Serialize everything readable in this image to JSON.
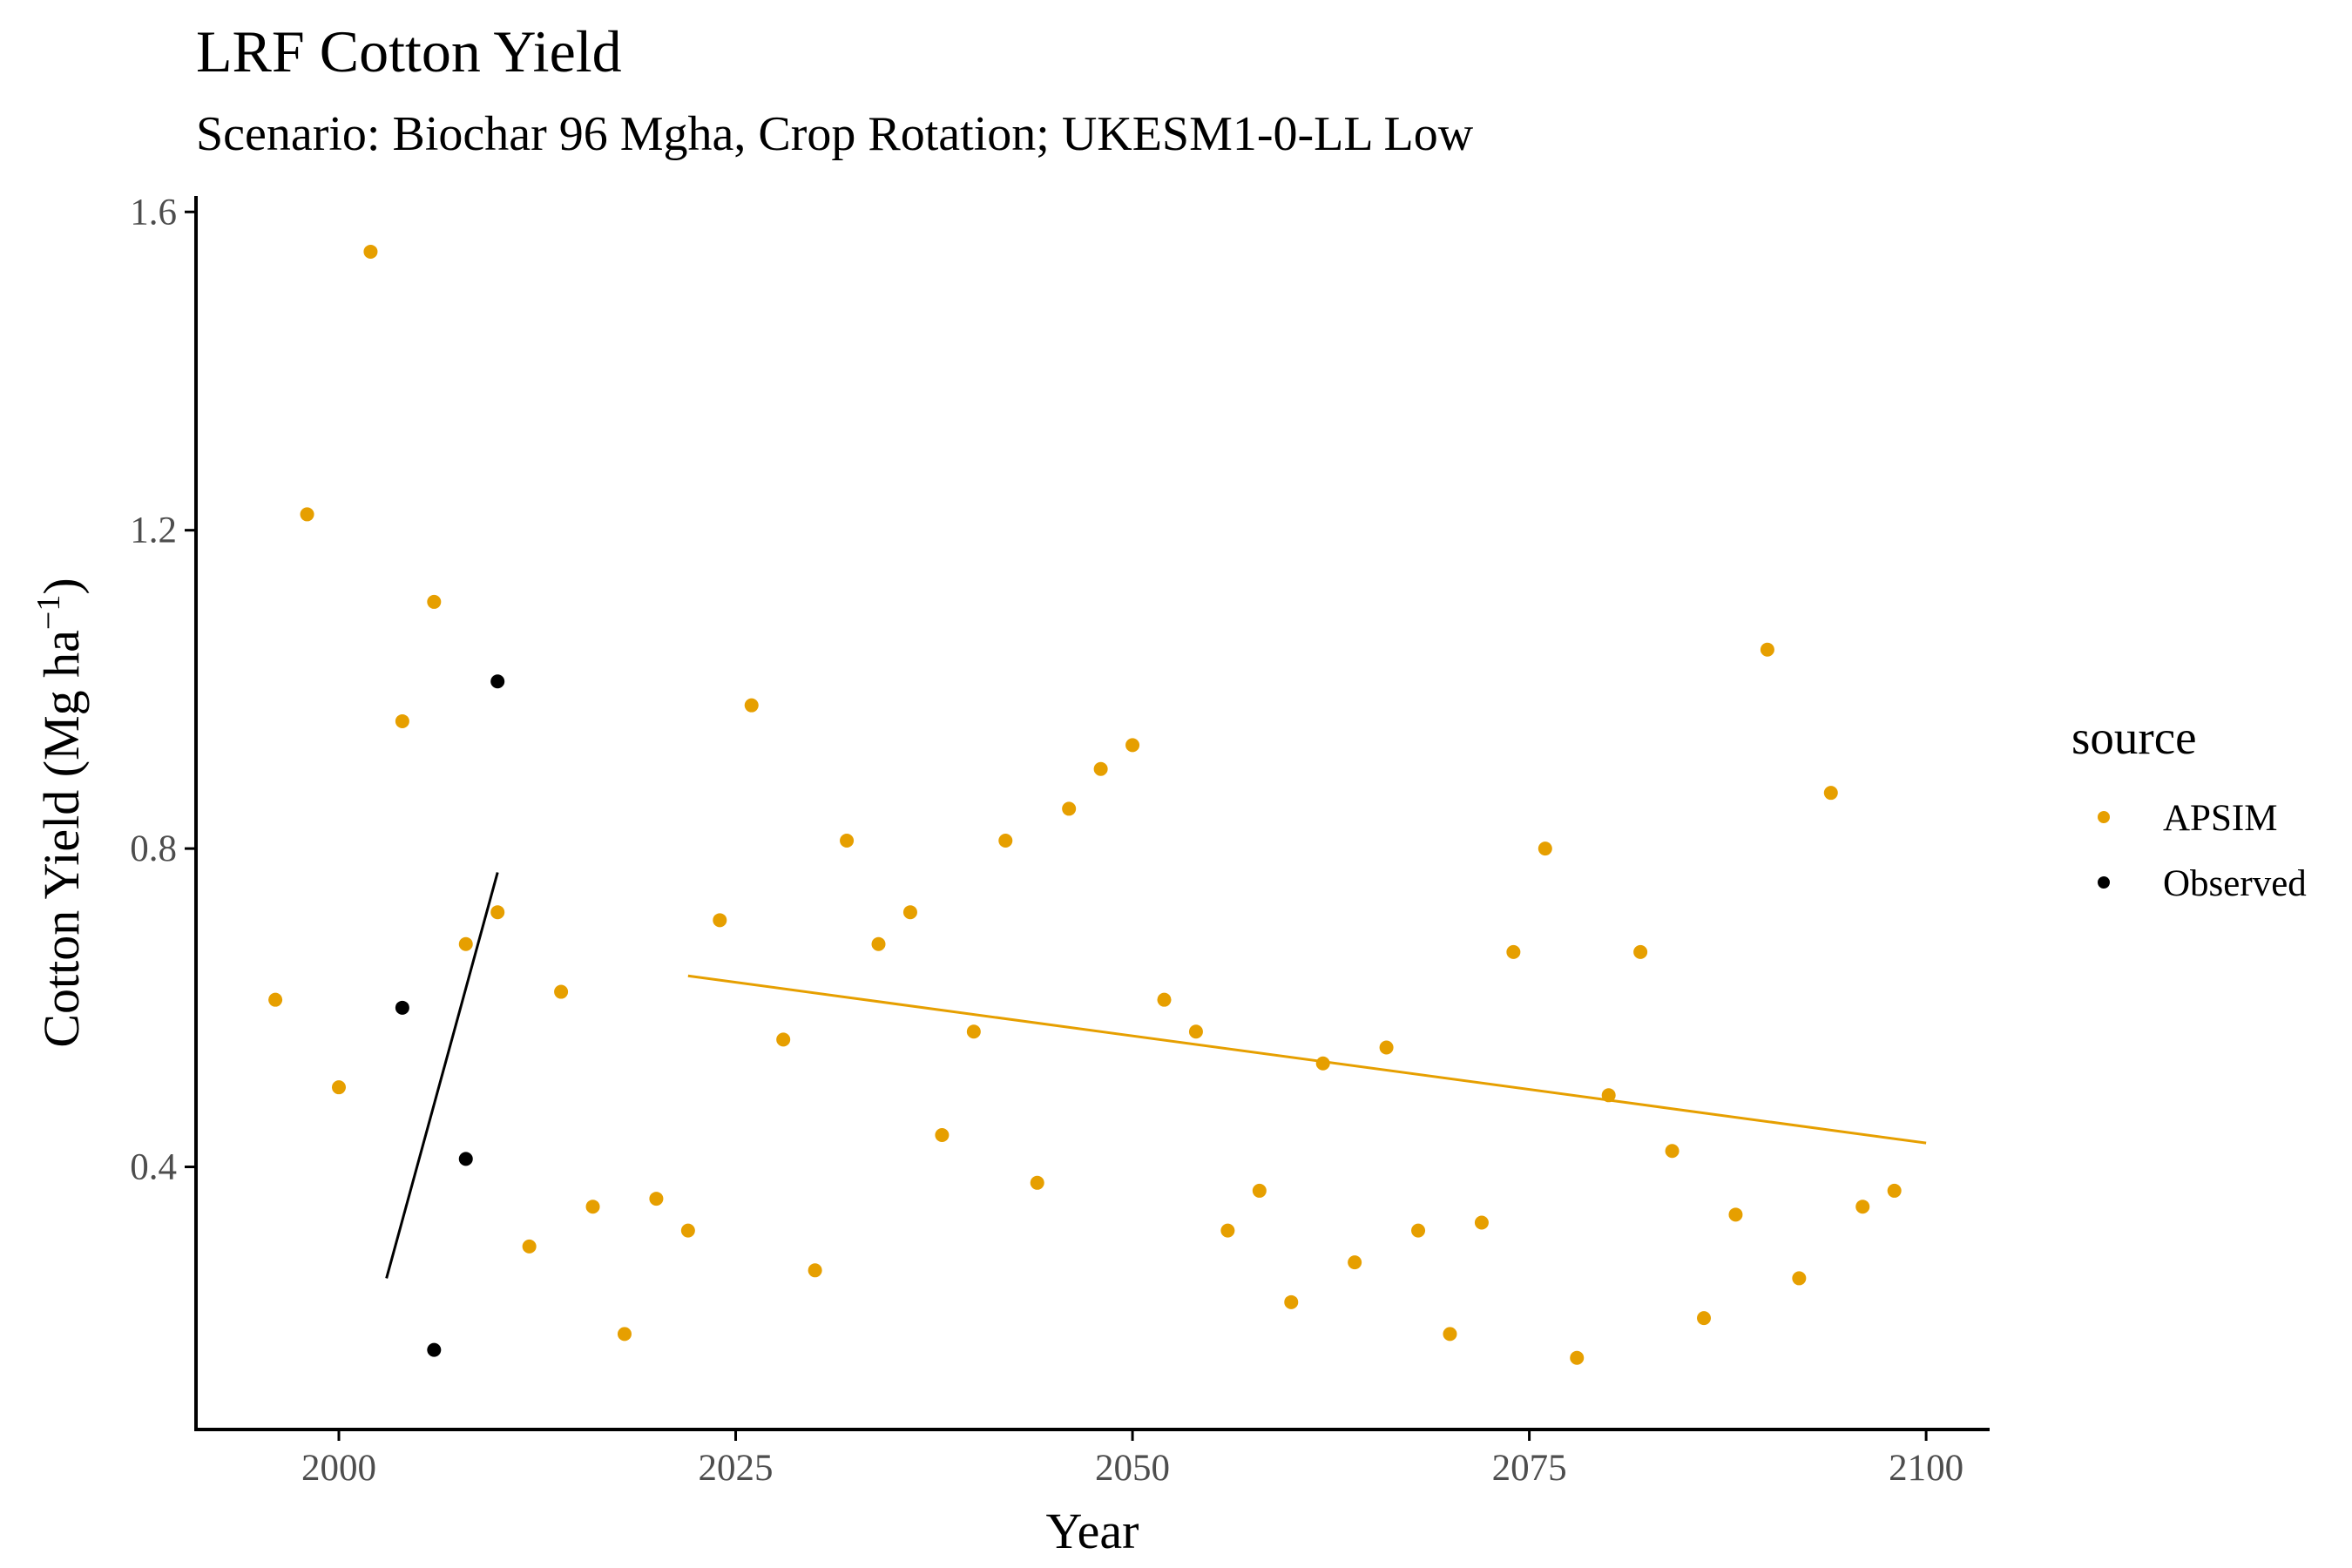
{
  "colors": {
    "APSIM": "#E69F00",
    "Observed": "#000000",
    "axis": "#000000",
    "tick_text": "#4d4d4d"
  },
  "chart_data": {
    "type": "scatter",
    "title": "LRF Cotton Yield",
    "subtitle": "Scenario: Biochar 96 Mgha, Crop Rotation; UKESM1-0-LL Low",
    "xlabel": "Year",
    "ylabel": "Cotton Yield (Mg ha",
    "ylabel_sup": "−1",
    "ylabel_close": ")",
    "xlim": [
      1991,
      2104
    ],
    "ylim": [
      0.07,
      1.62
    ],
    "xticks": [
      2000,
      2025,
      2050,
      2075,
      2100
    ],
    "xtick_labels": [
      "2000",
      "2025",
      "2050",
      "2075",
      "2100"
    ],
    "yticks": [
      0.4,
      0.8,
      1.2,
      1.6
    ],
    "ytick_labels": [
      "0.4",
      "0.8",
      "1.2",
      "1.6"
    ],
    "grid": false,
    "legend": {
      "title": "source",
      "placement": "right",
      "entries": [
        "APSIM",
        "Observed"
      ]
    },
    "series": [
      {
        "name": "APSIM",
        "x": [
          1996,
          1998,
          2000,
          2002,
          2004,
          2006,
          2008,
          2010,
          2012,
          2014,
          2016,
          2018,
          2020,
          2022,
          2024,
          2026,
          2028,
          2030,
          2032,
          2034,
          2036,
          2038,
          2040,
          2042,
          2044,
          2046,
          2048,
          2050,
          2052,
          2054,
          2056,
          2058,
          2060,
          2062,
          2064,
          2066,
          2068,
          2070,
          2072,
          2074,
          2076,
          2078,
          2080,
          2082,
          2084,
          2086,
          2088,
          2090,
          2092,
          2094,
          2096,
          2098
        ],
        "y": [
          0.61,
          1.22,
          0.5,
          1.55,
          0.96,
          1.11,
          0.68,
          0.72,
          0.3,
          0.62,
          0.35,
          0.19,
          0.36,
          0.32,
          0.71,
          0.98,
          0.56,
          0.27,
          0.81,
          0.68,
          0.72,
          0.44,
          0.57,
          0.81,
          0.38,
          0.85,
          0.9,
          0.93,
          0.61,
          0.57,
          0.32,
          0.37,
          0.23,
          0.53,
          0.28,
          0.55,
          0.32,
          0.19,
          0.33,
          0.67,
          0.8,
          0.16,
          0.49,
          0.67,
          0.42,
          0.21,
          0.34,
          1.05,
          0.26,
          0.87,
          0.35,
          0.37
        ]
      },
      {
        "name": "Observed",
        "x": [
          2004,
          2006,
          2008,
          2010
        ],
        "y": [
          0.6,
          0.17,
          0.41,
          1.01
        ]
      }
    ],
    "trend_lines": [
      {
        "series": "APSIM",
        "x": [
          2022,
          2100
        ],
        "y": [
          0.64,
          0.43
        ]
      },
      {
        "series": "Observed",
        "x": [
          2003,
          2010
        ],
        "y": [
          0.26,
          0.77
        ]
      }
    ]
  }
}
